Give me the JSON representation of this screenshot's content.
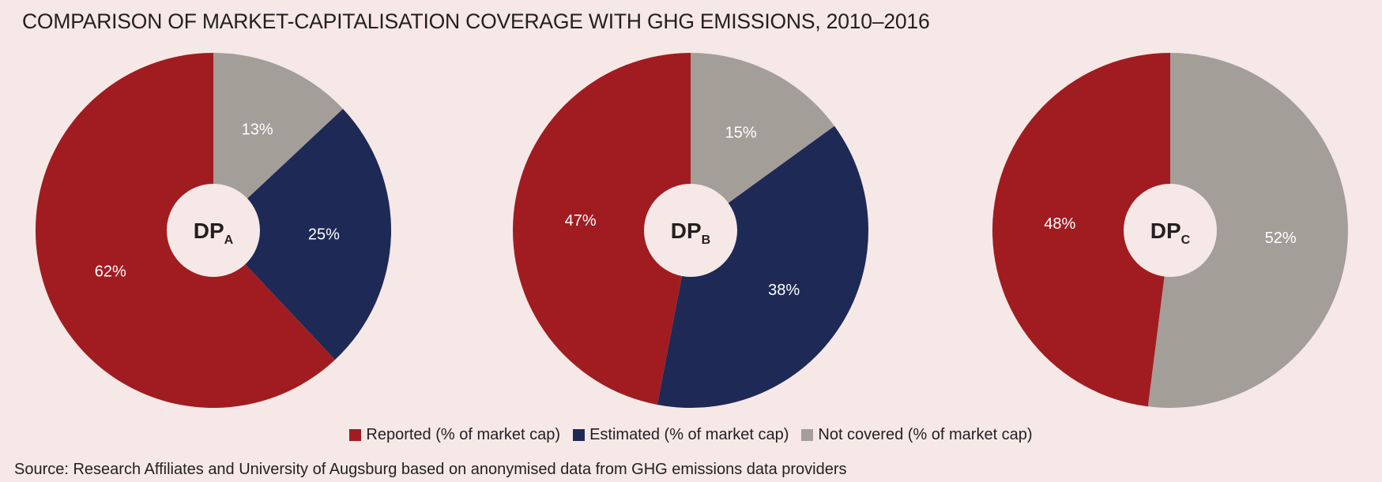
{
  "title": "COMPARISON OF MARKET-CAPITALISATION COVERAGE WITH GHG EMISSIONS, 2010–2016",
  "source": "Source: Research Affiliates and University of Augsburg based on anonymised data from GHG emissions data providers",
  "colors": {
    "reported": "#a01c21",
    "estimated": "#1e2a55",
    "not_covered": "#a49e99",
    "center": "#f5e8e6",
    "label_text": "#ffffff"
  },
  "legend": [
    {
      "label": "Reported (% of market cap)",
      "color": "#a01c21"
    },
    {
      "label": "Estimated (% of market cap)",
      "color": "#1e2a55"
    },
    {
      "label": "Not covered (% of market cap)",
      "color": "#a49e99"
    }
  ],
  "chart_data": [
    {
      "type": "pie",
      "center_label": {
        "main": "DP",
        "sub": "A"
      },
      "slices": [
        {
          "name": "Not covered (% of market cap)",
          "value": 13,
          "label": "13%",
          "color": "#a49e99"
        },
        {
          "name": "Estimated (% of market cap)",
          "value": 25,
          "label": "25%",
          "color": "#1e2a55"
        },
        {
          "name": "Reported (% of market cap)",
          "value": 62,
          "label": "62%",
          "color": "#a01c21"
        }
      ]
    },
    {
      "type": "pie",
      "center_label": {
        "main": "DP",
        "sub": "B"
      },
      "slices": [
        {
          "name": "Not covered (% of market cap)",
          "value": 15,
          "label": "15%",
          "color": "#a49e99"
        },
        {
          "name": "Estimated (% of market cap)",
          "value": 38,
          "label": "38%",
          "color": "#1e2a55"
        },
        {
          "name": "Reported (% of market cap)",
          "value": 47,
          "label": "47%",
          "color": "#a01c21"
        }
      ]
    },
    {
      "type": "pie",
      "center_label": {
        "main": "DP",
        "sub": "C"
      },
      "slices": [
        {
          "name": "Not covered (% of market cap)",
          "value": 52,
          "label": "52%",
          "color": "#a49e99"
        },
        {
          "name": "Reported (% of market cap)",
          "value": 48,
          "label": "48%",
          "color": "#a01c21"
        }
      ]
    }
  ]
}
